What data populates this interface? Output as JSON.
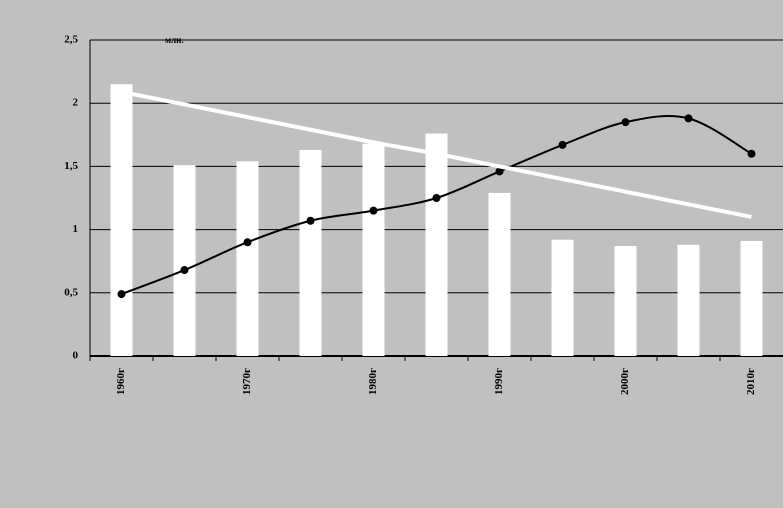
{
  "chart_data": {
    "type": "bar_line",
    "unit_label": "млн.",
    "categories": [
      "1960г",
      null,
      "1970г",
      null,
      "1980г",
      null,
      "1990г",
      null,
      "2000г",
      null,
      "2010г"
    ],
    "series": [
      {
        "type": "bar",
        "color": "#ffffff",
        "values": [
          2.15,
          1.51,
          1.54,
          1.63,
          1.68,
          1.76,
          1.29,
          0.92,
          0.87,
          0.88,
          0.91
        ]
      },
      {
        "type": "line",
        "color": "#000000",
        "marker": true,
        "smooth": true,
        "values": [
          0.49,
          0.68,
          0.9,
          1.07,
          1.15,
          1.25,
          1.46,
          1.67,
          1.85,
          1.88,
          1.6
        ]
      },
      {
        "type": "line",
        "color": "#ffffff",
        "marker": false,
        "smooth": false,
        "values": [
          2.09,
          1.99,
          1.89,
          1.79,
          1.69,
          1.6,
          1.5,
          1.4,
          1.3,
          1.2,
          1.1
        ]
      }
    ],
    "ylim": [
      0,
      2.5
    ],
    "yticks": [
      0,
      {
        "value": 0.5,
        "label": "0,5"
      },
      1,
      {
        "value": 1.5,
        "label": "1,5"
      },
      2,
      {
        "value": 2.5,
        "label": "2,5"
      }
    ],
    "grid": true
  }
}
